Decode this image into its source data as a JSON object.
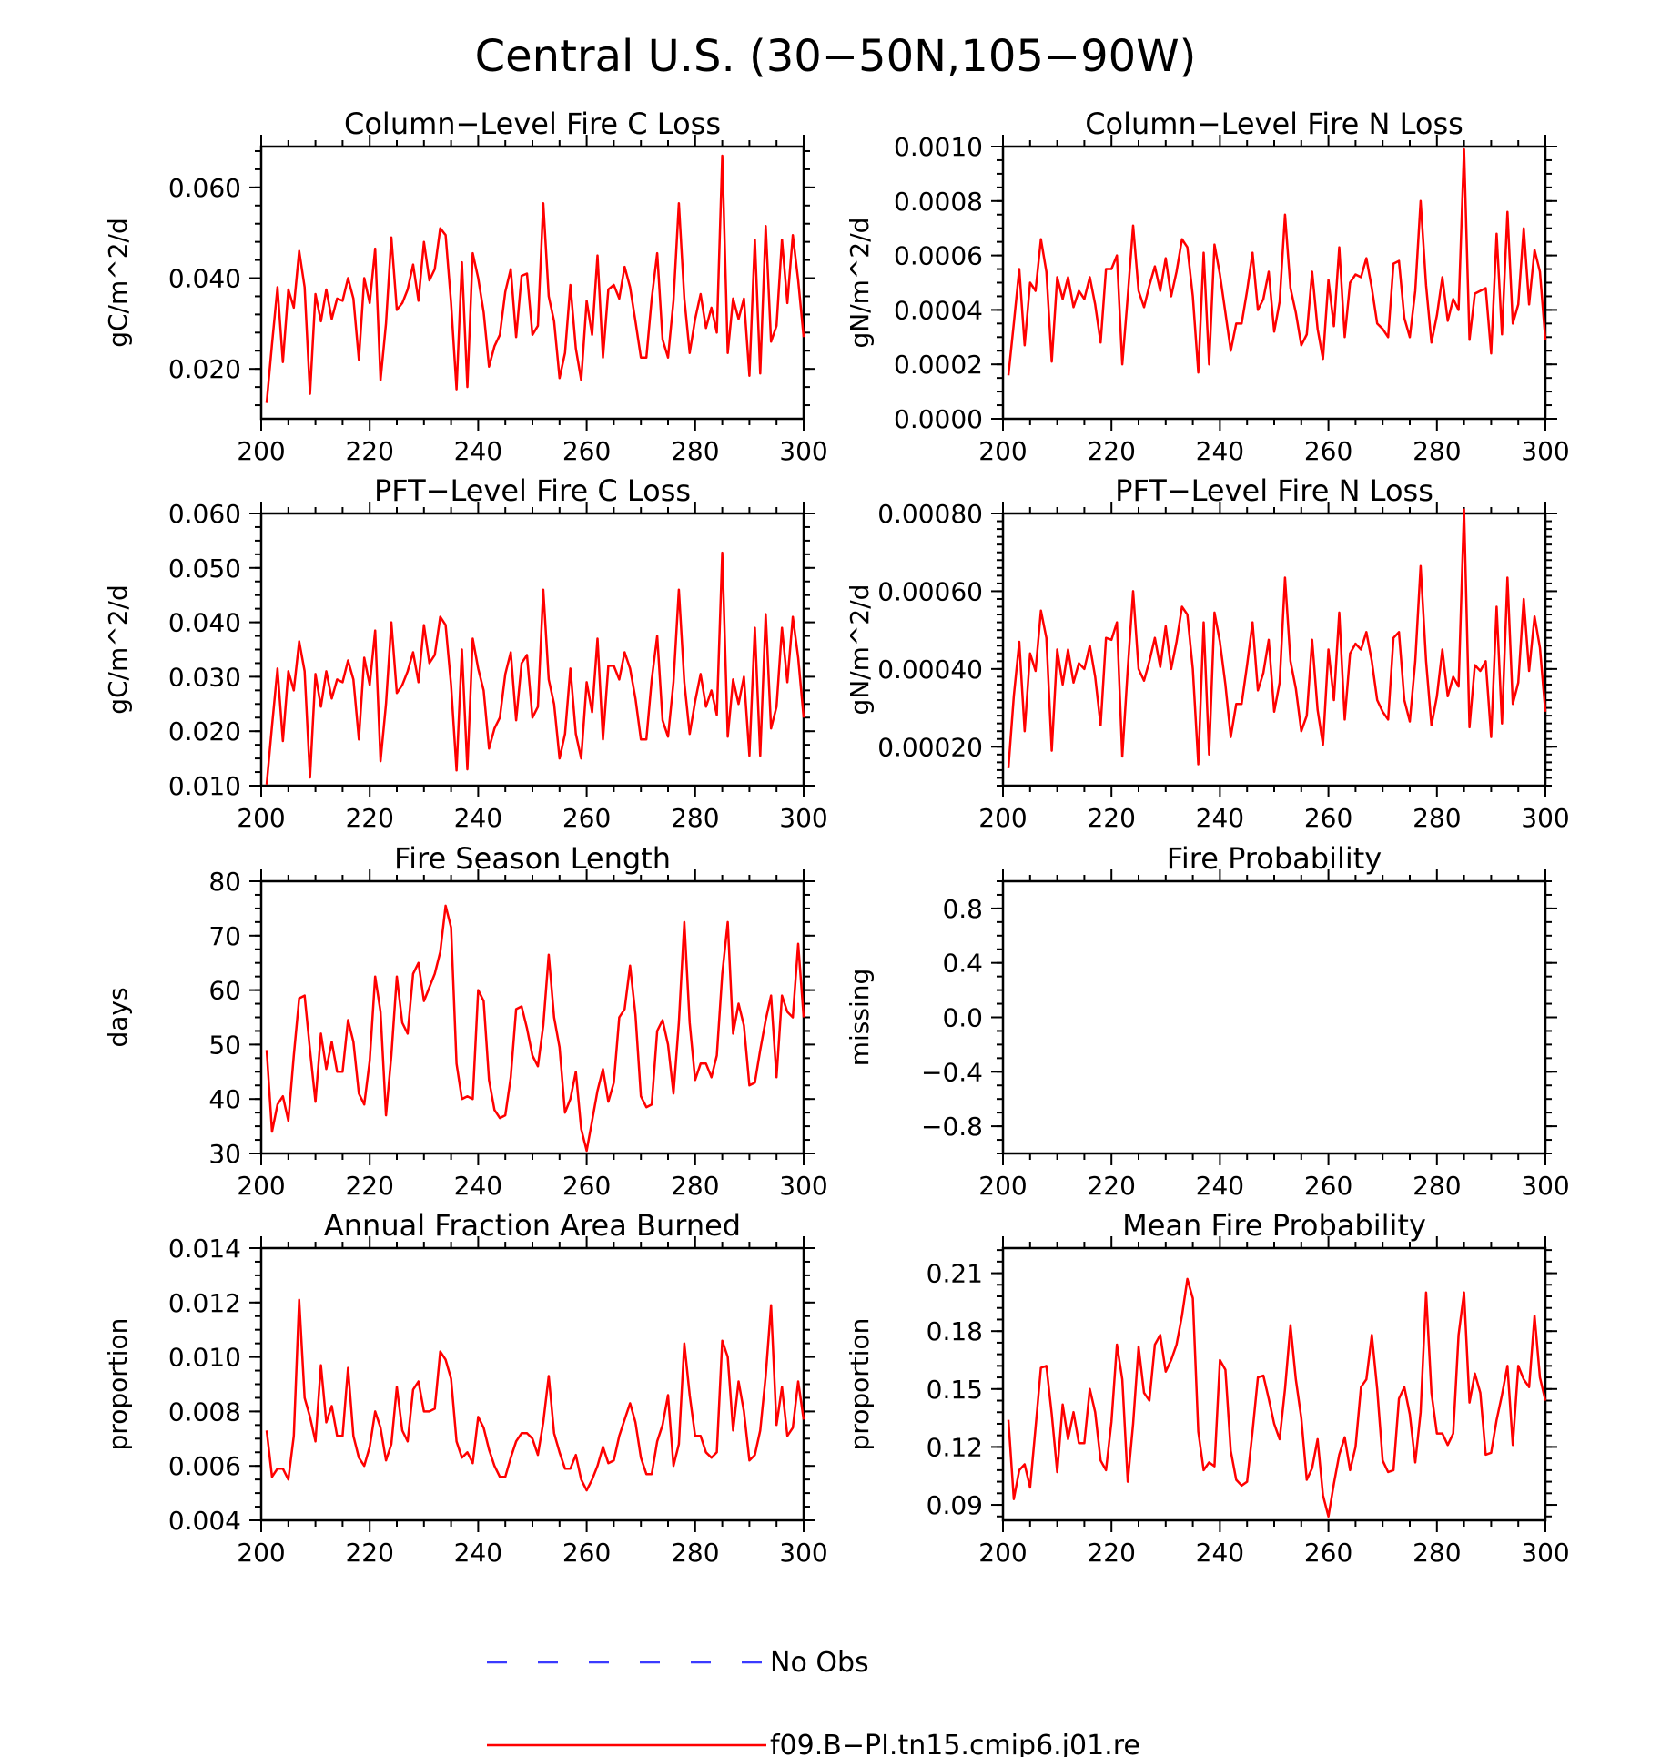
{
  "title": "Central U.S. (30−50N,105−90W)",
  "colors": {
    "model": "#ff0000",
    "obs": "#3a3aff",
    "axis": "#000000"
  },
  "legend": [
    {
      "label": "No Obs",
      "style": "dashed",
      "color": "#3a3aff"
    },
    {
      "label": "f09.B−PI.tn15.cmip6.j01.re",
      "style": "solid",
      "color": "#ff0000"
    }
  ],
  "chart_data": [
    {
      "type": "line",
      "title": "Column−Level Fire C Loss",
      "ylabel": "gC/m^2/d",
      "xlim": [
        200,
        300
      ],
      "ylim": [
        0.009,
        0.069
      ],
      "xticks": [
        "200",
        "220",
        "240",
        "260",
        "280",
        "300"
      ],
      "yticks": [
        "0.020",
        "0.040",
        "0.060"
      ],
      "yminor": 0.004,
      "x_start": 201,
      "series": [
        {
          "values": [
            0.0125,
            0.0255,
            0.038,
            0.0215,
            0.0375,
            0.0335,
            0.046,
            0.038,
            0.0145,
            0.0365,
            0.0305,
            0.0375,
            0.031,
            0.0355,
            0.035,
            0.04,
            0.0355,
            0.022,
            0.04,
            0.0345,
            0.0465,
            0.0175,
            0.03,
            0.049,
            0.033,
            0.0345,
            0.0375,
            0.043,
            0.035,
            0.048,
            0.0395,
            0.042,
            0.051,
            0.0495,
            0.0345,
            0.0155,
            0.0435,
            0.016,
            0.0455,
            0.04,
            0.0325,
            0.0205,
            0.025,
            0.0275,
            0.037,
            0.042,
            0.027,
            0.0405,
            0.041,
            0.0275,
            0.0295,
            0.0565,
            0.036,
            0.0305,
            0.018,
            0.0235,
            0.0385,
            0.0245,
            0.0175,
            0.035,
            0.0275,
            0.045,
            0.0225,
            0.0375,
            0.0385,
            0.0355,
            0.0425,
            0.038,
            0.0305,
            0.0225,
            0.0225,
            0.0355,
            0.0455,
            0.0265,
            0.0225,
            0.035,
            0.0565,
            0.0355,
            0.0235,
            0.031,
            0.0365,
            0.029,
            0.0335,
            0.028,
            0.067,
            0.0235,
            0.0355,
            0.031,
            0.0355,
            0.0185,
            0.0485,
            0.019,
            0.0515,
            0.026,
            0.0295,
            0.0485,
            0.0345,
            0.0495,
            0.0395,
            0.027
          ]
        }
      ]
    },
    {
      "type": "line",
      "title": "Column−Level Fire N Loss",
      "ylabel": "gN/m^2/d",
      "xlim": [
        200,
        300
      ],
      "ylim": [
        0.0,
        0.001
      ],
      "xticks": [
        "200",
        "220",
        "240",
        "260",
        "280",
        "300"
      ],
      "yticks": [
        "0.0000",
        "0.0002",
        "0.0004",
        "0.0006",
        "0.0008",
        "0.0010"
      ],
      "yminor": 5e-05,
      "x_start": 201,
      "series": [
        {
          "values": [
            0.00016,
            0.00035,
            0.00055,
            0.00027,
            0.0005,
            0.00047,
            0.00066,
            0.00054,
            0.00021,
            0.00052,
            0.00044,
            0.00052,
            0.00041,
            0.00047,
            0.00044,
            0.00052,
            0.00042,
            0.00028,
            0.00055,
            0.00055,
            0.0006,
            0.0002,
            0.00045,
            0.00071,
            0.00047,
            0.00041,
            0.00049,
            0.00056,
            0.00047,
            0.00059,
            0.00045,
            0.00054,
            0.00066,
            0.00063,
            0.00045,
            0.00017,
            0.00061,
            0.0002,
            0.00064,
            0.00053,
            0.00039,
            0.00025,
            0.00035,
            0.00035,
            0.00047,
            0.00061,
            0.0004,
            0.00044,
            0.00054,
            0.00032,
            0.00043,
            0.00075,
            0.00048,
            0.00039,
            0.00027,
            0.00031,
            0.00054,
            0.00033,
            0.00022,
            0.00051,
            0.00034,
            0.00063,
            0.0003,
            0.0005,
            0.00053,
            0.00052,
            0.00059,
            0.00048,
            0.00035,
            0.00033,
            0.0003,
            0.00057,
            0.00058,
            0.00037,
            0.0003,
            0.00047,
            0.0008,
            0.00049,
            0.00028,
            0.00038,
            0.00052,
            0.00036,
            0.00044,
            0.0004,
            0.00099,
            0.00029,
            0.00046,
            0.00047,
            0.00048,
            0.00024,
            0.00068,
            0.00031,
            0.00076,
            0.00035,
            0.00042,
            0.0007,
            0.00042,
            0.00062,
            0.00054,
            0.00029
          ]
        }
      ]
    },
    {
      "type": "line",
      "title": "PFT−Level Fire C Loss",
      "ylabel": "gC/m^2/d",
      "xlim": [
        200,
        300
      ],
      "ylim": [
        0.01,
        0.06
      ],
      "xticks": [
        "200",
        "220",
        "240",
        "260",
        "280",
        "300"
      ],
      "yticks": [
        "0.010",
        "0.020",
        "0.030",
        "0.040",
        "0.050",
        "0.060"
      ],
      "yminor": 0.0025,
      "x_start": 201,
      "series": [
        {
          "values": [
            0.0102,
            0.021,
            0.0315,
            0.0182,
            0.031,
            0.0275,
            0.0365,
            0.031,
            0.0115,
            0.0305,
            0.0245,
            0.031,
            0.026,
            0.0295,
            0.029,
            0.033,
            0.0295,
            0.0185,
            0.0335,
            0.0285,
            0.0385,
            0.0145,
            0.025,
            0.04,
            0.027,
            0.0285,
            0.031,
            0.0345,
            0.029,
            0.0395,
            0.0325,
            0.034,
            0.041,
            0.0395,
            0.0285,
            0.0128,
            0.035,
            0.013,
            0.037,
            0.0315,
            0.0275,
            0.0168,
            0.0205,
            0.0225,
            0.0305,
            0.0345,
            0.022,
            0.0325,
            0.034,
            0.0225,
            0.0245,
            0.046,
            0.0295,
            0.025,
            0.015,
            0.0195,
            0.0315,
            0.0195,
            0.015,
            0.029,
            0.0235,
            0.037,
            0.0185,
            0.032,
            0.032,
            0.0295,
            0.0345,
            0.0315,
            0.026,
            0.0185,
            0.0185,
            0.0295,
            0.0375,
            0.022,
            0.019,
            0.029,
            0.046,
            0.029,
            0.0195,
            0.0255,
            0.0305,
            0.0245,
            0.0275,
            0.023,
            0.0528,
            0.019,
            0.0295,
            0.025,
            0.03,
            0.0155,
            0.039,
            0.0155,
            0.0415,
            0.0205,
            0.0245,
            0.039,
            0.029,
            0.041,
            0.0335,
            0.0225
          ]
        }
      ]
    },
    {
      "type": "line",
      "title": "PFT−Level Fire N Loss",
      "ylabel": "gN/m^2/d",
      "xlim": [
        200,
        300
      ],
      "ylim": [
        0.0001,
        0.0008
      ],
      "xticks": [
        "200",
        "220",
        "240",
        "260",
        "280",
        "300"
      ],
      "yticks": [
        "0.00020",
        "0.00040",
        "0.00060",
        "0.00080"
      ],
      "yminor": 2e-05,
      "x_start": 201,
      "series": [
        {
          "values": [
            0.000145,
            0.00033,
            0.00047,
            0.00024,
            0.00044,
            0.000395,
            0.00055,
            0.00048,
            0.00019,
            0.00045,
            0.00036,
            0.00045,
            0.000365,
            0.000415,
            0.0004,
            0.00046,
            0.00038,
            0.000255,
            0.00048,
            0.000475,
            0.00052,
            0.000175,
            0.0004,
            0.0006,
            0.0004,
            0.00037,
            0.00042,
            0.00048,
            0.000405,
            0.00051,
            0.0004,
            0.00047,
            0.00056,
            0.00054,
            0.0004,
            0.000155,
            0.00052,
            0.00018,
            0.000545,
            0.00047,
            0.00036,
            0.000225,
            0.00031,
            0.00031,
            0.00041,
            0.00052,
            0.000345,
            0.00039,
            0.000475,
            0.00029,
            0.000365,
            0.000635,
            0.00042,
            0.00035,
            0.00024,
            0.00028,
            0.000475,
            0.000295,
            0.000205,
            0.00045,
            0.00032,
            0.000545,
            0.00027,
            0.00044,
            0.000465,
            0.00045,
            0.000495,
            0.00042,
            0.00032,
            0.00029,
            0.00027,
            0.00048,
            0.000495,
            0.00032,
            0.000265,
            0.00042,
            0.000665,
            0.00042,
            0.000255,
            0.00033,
            0.00045,
            0.00033,
            0.00038,
            0.000355,
            0.00081,
            0.00025,
            0.00041,
            0.000395,
            0.00042,
            0.000225,
            0.00056,
            0.00026,
            0.000635,
            0.00031,
            0.000365,
            0.00058,
            0.000395,
            0.000535,
            0.000455,
            0.00029
          ]
        }
      ]
    },
    {
      "type": "line",
      "title": "Fire Season Length",
      "ylabel": "days",
      "xlim": [
        200,
        300
      ],
      "ylim": [
        30,
        80
      ],
      "xticks": [
        "200",
        "220",
        "240",
        "260",
        "280",
        "300"
      ],
      "yticks": [
        "30",
        "40",
        "50",
        "60",
        "70",
        "80"
      ],
      "yminor": 2.5,
      "x_start": 201,
      "series": [
        {
          "values": [
            49,
            34,
            39,
            40.5,
            36,
            48,
            58.5,
            59,
            49,
            39.5,
            52,
            45.5,
            50.5,
            45,
            45,
            54.5,
            50.5,
            41,
            39,
            47,
            62.5,
            56,
            37,
            48,
            62.5,
            54,
            52,
            63,
            65,
            58,
            60.5,
            63,
            67,
            75.5,
            71.5,
            46.5,
            40,
            40.5,
            40,
            60,
            58,
            43.5,
            38,
            36.5,
            37,
            44,
            56.5,
            57,
            53,
            48,
            46,
            53.5,
            66.5,
            55,
            49.5,
            37.5,
            40,
            45,
            34.5,
            30.5,
            36,
            41.5,
            45.5,
            39.5,
            43,
            55,
            56.5,
            64.5,
            55.5,
            40.5,
            38.5,
            39,
            52.5,
            54.5,
            50,
            41,
            54,
            72.5,
            54,
            43.5,
            46.5,
            46.5,
            44,
            48,
            63,
            72.5,
            52,
            57.5,
            53.5,
            42.5,
            43,
            49,
            54.5,
            59,
            44,
            59,
            56,
            55,
            68.5,
            55
          ]
        }
      ]
    },
    {
      "type": "line",
      "title": "Fire Probability",
      "ylabel": "missing",
      "xlim": [
        200,
        300
      ],
      "ylim": [
        -1,
        1
      ],
      "xticks": [
        "200",
        "220",
        "240",
        "260",
        "280",
        "300"
      ],
      "yticks": [
        "−0.8",
        "−0.4",
        "0.0",
        "0.4",
        "0.8"
      ],
      "yminor": 0.1,
      "x_start": 201,
      "series": []
    },
    {
      "type": "line",
      "title": "Annual Fraction Area Burned",
      "ylabel": "proportion",
      "xlim": [
        200,
        300
      ],
      "ylim": [
        0.004,
        0.014
      ],
      "xticks": [
        "200",
        "220",
        "240",
        "260",
        "280",
        "300"
      ],
      "yticks": [
        "0.004",
        "0.006",
        "0.008",
        "0.010",
        "0.012",
        "0.014"
      ],
      "yminor": 0.0005,
      "x_start": 201,
      "series": [
        {
          "values": [
            0.0073,
            0.0056,
            0.0059,
            0.0059,
            0.0055,
            0.0071,
            0.0121,
            0.0085,
            0.0078,
            0.0069,
            0.0097,
            0.0076,
            0.0082,
            0.0071,
            0.0071,
            0.0096,
            0.0071,
            0.0063,
            0.006,
            0.0067,
            0.008,
            0.0074,
            0.0062,
            0.0068,
            0.0089,
            0.0073,
            0.0069,
            0.0088,
            0.0091,
            0.008,
            0.008,
            0.0081,
            0.0102,
            0.0099,
            0.0092,
            0.0069,
            0.0063,
            0.0065,
            0.0061,
            0.0078,
            0.0074,
            0.0066,
            0.006,
            0.0056,
            0.0056,
            0.0063,
            0.0069,
            0.0072,
            0.0072,
            0.007,
            0.0064,
            0.0076,
            0.0093,
            0.0072,
            0.0065,
            0.0059,
            0.0059,
            0.0064,
            0.0055,
            0.0051,
            0.0055,
            0.006,
            0.0067,
            0.0061,
            0.0062,
            0.0071,
            0.0077,
            0.0083,
            0.0076,
            0.0063,
            0.0057,
            0.0057,
            0.0069,
            0.0075,
            0.0086,
            0.006,
            0.0068,
            0.0105,
            0.0086,
            0.0071,
            0.0071,
            0.0065,
            0.0063,
            0.0065,
            0.0106,
            0.01,
            0.0073,
            0.0091,
            0.008,
            0.0062,
            0.0064,
            0.0073,
            0.0093,
            0.0119,
            0.0075,
            0.0089,
            0.0071,
            0.0074,
            0.0091,
            0.0077
          ]
        }
      ]
    },
    {
      "type": "line",
      "title": "Mean Fire Probability",
      "ylabel": "proportion",
      "xlim": [
        200,
        300
      ],
      "ylim": [
        0.082,
        0.223
      ],
      "xticks": [
        "200",
        "220",
        "240",
        "260",
        "280",
        "300"
      ],
      "yticks": [
        "0.09",
        "0.12",
        "0.15",
        "0.18",
        "0.21"
      ],
      "yminor": 0.006,
      "x_start": 201,
      "series": [
        {
          "values": [
            0.134,
            0.093,
            0.108,
            0.111,
            0.099,
            0.13,
            0.161,
            0.162,
            0.137,
            0.107,
            0.142,
            0.124,
            0.138,
            0.122,
            0.122,
            0.15,
            0.138,
            0.113,
            0.108,
            0.133,
            0.173,
            0.155,
            0.102,
            0.132,
            0.172,
            0.148,
            0.144,
            0.173,
            0.178,
            0.159,
            0.165,
            0.173,
            0.188,
            0.207,
            0.197,
            0.128,
            0.108,
            0.112,
            0.11,
            0.165,
            0.16,
            0.118,
            0.103,
            0.1,
            0.102,
            0.128,
            0.156,
            0.157,
            0.145,
            0.132,
            0.124,
            0.15,
            0.183,
            0.155,
            0.135,
            0.103,
            0.109,
            0.124,
            0.095,
            0.084,
            0.101,
            0.116,
            0.125,
            0.108,
            0.12,
            0.151,
            0.155,
            0.178,
            0.15,
            0.113,
            0.107,
            0.108,
            0.145,
            0.151,
            0.137,
            0.112,
            0.138,
            0.2,
            0.148,
            0.127,
            0.127,
            0.121,
            0.127,
            0.178,
            0.2,
            0.143,
            0.158,
            0.148,
            0.116,
            0.117,
            0.134,
            0.147,
            0.162,
            0.121,
            0.162,
            0.155,
            0.151,
            0.188,
            0.156,
            0.144
          ]
        }
      ]
    }
  ]
}
